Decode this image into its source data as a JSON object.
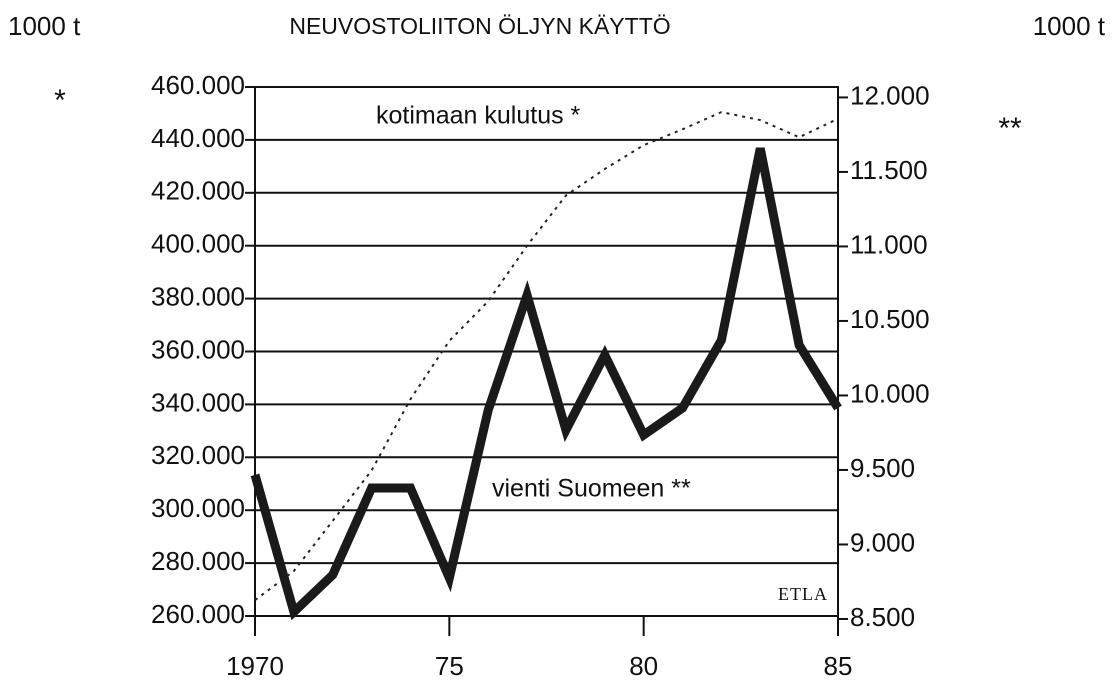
{
  "chart_data": {
    "type": "line",
    "title": "NEUVOSTOLIITON ÖLJYN KÄYTTÖ",
    "y_label": "1000 t",
    "y2_label": "1000 t",
    "y_marker": "*",
    "y2_marker": "**",
    "annotations": [
      "kotimaan kulutus *",
      "vienti Suomeen **",
      "ETLA"
    ],
    "x": [
      1970,
      1971,
      1972,
      1973,
      1974,
      1975,
      1976,
      1977,
      1978,
      1979,
      1980,
      1981,
      1982,
      1983,
      1984,
      1985
    ],
    "xlim": [
      1970,
      1985
    ],
    "xticks": [
      {
        "value": 1970,
        "label": "1970"
      },
      {
        "value": 1975,
        "label": "75"
      },
      {
        "value": 1980,
        "label": "80"
      },
      {
        "value": 1985,
        "label": "85"
      }
    ],
    "ylim": [
      260000,
      460000
    ],
    "yticks": [
      {
        "value": 260000,
        "label": "260.000"
      },
      {
        "value": 280000,
        "label": "280.000"
      },
      {
        "value": 300000,
        "label": "300.000"
      },
      {
        "value": 320000,
        "label": "320.000"
      },
      {
        "value": 340000,
        "label": "340.000"
      },
      {
        "value": 360000,
        "label": "360.000"
      },
      {
        "value": 380000,
        "label": "380.000"
      },
      {
        "value": 400000,
        "label": "400.000"
      },
      {
        "value": 420000,
        "label": "420.000"
      },
      {
        "value": 440000,
        "label": "440.000"
      },
      {
        "value": 460000,
        "label": "460.000"
      }
    ],
    "y2lim": [
      8520,
      12070
    ],
    "y2ticks": [
      {
        "value": 8500,
        "label": "8.500"
      },
      {
        "value": 9000,
        "label": "9.000"
      },
      {
        "value": 9500,
        "label": "9.500"
      },
      {
        "value": 10000,
        "label": "10.000"
      },
      {
        "value": 10500,
        "label": "10.500"
      },
      {
        "value": 11000,
        "label": "11.000"
      },
      {
        "value": 11500,
        "label": "11.500"
      },
      {
        "value": 12000,
        "label": "12.000"
      }
    ],
    "grid": true,
    "series": [
      {
        "name": "kotimaan kulutus",
        "color": "#222222",
        "style": "dotted",
        "values": [
          266000,
          277000,
          296000,
          315000,
          342000,
          364000,
          379000,
          400000,
          419000,
          429000,
          438000,
          444000,
          450500,
          447500,
          441000,
          448000
        ]
      },
      {
        "name": "vienti Suomeen",
        "color": "#1a1a1a",
        "style": "thick",
        "axis": "y2",
        "values": [
          9467,
          8548,
          8796,
          9379,
          9379,
          8776,
          9902,
          10673,
          9768,
          10271,
          9735,
          9916,
          10371,
          11658,
          10338,
          9916
        ]
      }
    ]
  }
}
